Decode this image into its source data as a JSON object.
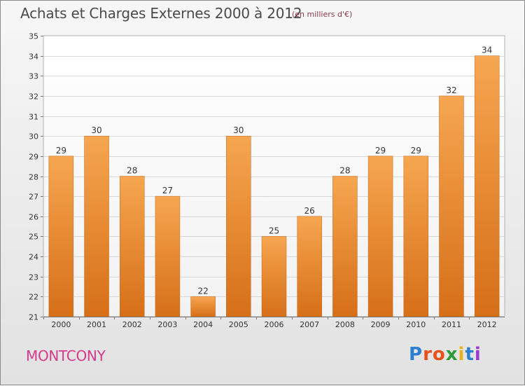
{
  "header": {
    "title": "Achats et Charges Externes 2000 à 2012",
    "subtitle": "(en milliers d'€)"
  },
  "footer": {
    "place": "MONTCONY",
    "logo": [
      "P",
      "r",
      "o",
      "x",
      "i",
      "t",
      "i"
    ]
  },
  "colors": {
    "bar_top": "#f6a650",
    "bar_bottom": "#d66f18",
    "place": "#d63a8a"
  },
  "chart_data": {
    "type": "bar",
    "title": "Achats et Charges Externes 2000 à 2012",
    "subtitle": "(en milliers d'€)",
    "categories": [
      "2000",
      "2001",
      "2002",
      "2003",
      "2004",
      "2005",
      "2006",
      "2007",
      "2008",
      "2009",
      "2010",
      "2011",
      "2012"
    ],
    "values": [
      29,
      30,
      28,
      27,
      22,
      30,
      25,
      26,
      28,
      29,
      29,
      32,
      34
    ],
    "ylim": [
      21,
      35
    ],
    "yticks": [
      "21",
      "22",
      "23",
      "24",
      "25",
      "26",
      "27",
      "28",
      "29",
      "30",
      "31",
      "32",
      "33",
      "34",
      "35"
    ],
    "grid": true,
    "legend": "none"
  }
}
